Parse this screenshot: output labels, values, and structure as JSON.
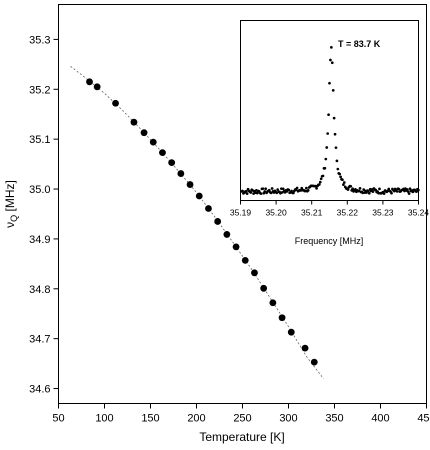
{
  "chart_data": [
    {
      "type": "scatter",
      "xlabel": "Temperature [K]",
      "ylabel_main": "ν",
      "ylabel_sub": "Q",
      "ylabel_unit": " [MHz]",
      "xlim": [
        50,
        450
      ],
      "ylim": [
        34.57,
        35.37
      ],
      "x_ticks": [
        50,
        100,
        150,
        200,
        250,
        300,
        350,
        400,
        450
      ],
      "y_ticks": [
        34.6,
        34.7,
        34.8,
        34.9,
        35.0,
        35.1,
        35.2,
        35.3
      ],
      "x_tick_labels": [
        "50",
        "100",
        "150",
        "200",
        "250",
        "300",
        "350",
        "400",
        "450"
      ],
      "y_tick_labels": [
        "34.6",
        "34.7",
        "34.8",
        "34.9",
        "35.0",
        "35.1",
        "35.2",
        "35.3"
      ],
      "series": [
        {
          "points": [
            [
              83.7,
              35.215
            ],
            [
              92,
              35.205
            ],
            [
              112,
              35.172
            ],
            [
              132,
              35.134
            ],
            [
              143,
              35.113
            ],
            [
              153,
              35.094
            ],
            [
              163,
              35.073
            ],
            [
              173,
              35.053
            ],
            [
              183,
              35.031
            ],
            [
              193,
              35.009
            ],
            [
              203,
              34.986
            ],
            [
              213,
              34.961
            ],
            [
              223,
              34.935
            ],
            [
              233,
              34.909
            ],
            [
              243,
              34.884
            ],
            [
              253,
              34.857
            ],
            [
              263,
              34.832
            ],
            [
              273,
              34.801
            ],
            [
              283,
              34.772
            ],
            [
              293,
              34.742
            ],
            [
              303,
              34.713
            ],
            [
              318,
              34.681
            ],
            [
              328,
              34.653
            ]
          ]
        }
      ],
      "fit_curve": [
        [
          63,
          35.246
        ],
        [
          80,
          35.222
        ],
        [
          100,
          35.192
        ],
        [
          120,
          35.157
        ],
        [
          140,
          35.119
        ],
        [
          160,
          35.079
        ],
        [
          180,
          35.037
        ],
        [
          200,
          34.993
        ],
        [
          220,
          34.944
        ],
        [
          240,
          34.892
        ],
        [
          260,
          34.839
        ],
        [
          280,
          34.782
        ],
        [
          300,
          34.724
        ],
        [
          320,
          34.663
        ],
        [
          338,
          34.62
        ]
      ],
      "grid": false
    },
    {
      "type": "scatter",
      "role": "inset",
      "annotation": "T = 83.7 K",
      "xlabel": "Frequency [MHz]",
      "xlim": [
        35.19,
        35.24
      ],
      "x_ticks": [
        35.19,
        35.2,
        35.21,
        35.22,
        35.23,
        35.24
      ],
      "x_tick_labels": [
        "35.19",
        "35.20",
        "35.21",
        "35.22",
        "35.23",
        "35.24"
      ],
      "y_ticks": [],
      "peak_center": 35.2155,
      "peak_amplitude": 0.79,
      "peak_width": 0.00085,
      "baseline": 0.05,
      "grid": false
    }
  ]
}
